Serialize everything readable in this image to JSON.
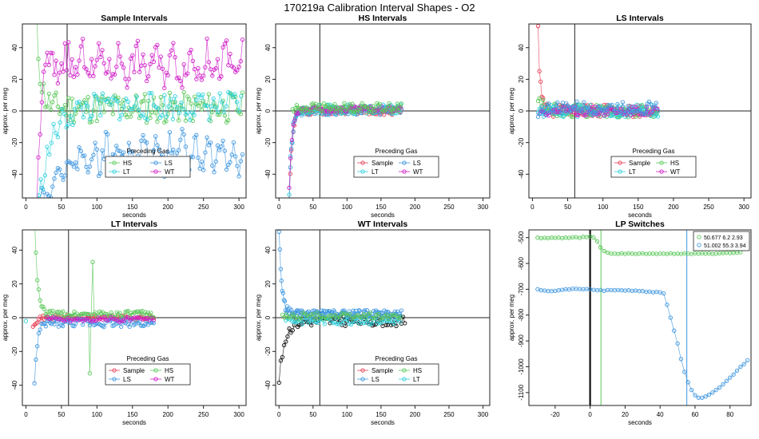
{
  "figure_title": "170219a   Calibration Interval Shapes - O2",
  "colors": {
    "Sample": "#e8435a",
    "HS": "#5ac85a",
    "LS": "#3f97e0",
    "LT": "#2fd1dc",
    "WT": "#d020c8",
    "black": "#111111",
    "axis": "#222222"
  },
  "chart_data": [
    {
      "id": "sample",
      "type": "scatter",
      "title": "Sample Intervals",
      "xlabel": "seconds",
      "ylabel": "approx. per meg",
      "xlim": [
        -5,
        310
      ],
      "ylim": [
        -55,
        55
      ],
      "xticks": [
        0,
        50,
        100,
        150,
        200,
        250,
        300
      ],
      "yticks": [
        -40,
        -20,
        0,
        20,
        40
      ],
      "vline": 58,
      "legend": {
        "title": "Preceding Gas",
        "placement": "bottom-center",
        "entries": [
          "HS",
          "LS",
          "LT",
          "WT"
        ]
      },
      "series": [
        {
          "name": "HS",
          "x_start": 15,
          "x_end": 305,
          "step": 2.5,
          "start": 55,
          "tau": 6,
          "level": 2,
          "noise": 10,
          "seed": 11
        },
        {
          "name": "LS",
          "x_start": 15,
          "x_end": 305,
          "step": 2.5,
          "start": -70,
          "tau": 25,
          "level": -27,
          "noise": 8,
          "wave": 8,
          "period": 18,
          "seed": 22
        },
        {
          "name": "LT",
          "x_start": 15,
          "x_end": 305,
          "step": 3,
          "start": -70,
          "tau": 18,
          "level": 3,
          "noise": 9,
          "seed": 33
        },
        {
          "name": "WT",
          "x_start": 15,
          "x_end": 305,
          "step": 2.5,
          "start": -60,
          "tau": 5,
          "level": 30,
          "noise": 10,
          "wave": 6,
          "period": 25,
          "seed": 44
        }
      ]
    },
    {
      "id": "hs",
      "type": "scatter",
      "title": "HS Intervals",
      "xlabel": "seconds",
      "ylabel": "approx. per meg",
      "xlim": [
        -5,
        310
      ],
      "ylim": [
        -55,
        55
      ],
      "xticks": [
        0,
        50,
        100,
        150,
        200,
        250,
        300
      ],
      "yticks": [
        -40,
        -20,
        0,
        20,
        40
      ],
      "vline": 60,
      "legend": {
        "title": "Preceding Gas",
        "placement": "bottom-center",
        "entries": [
          "Sample",
          "LS",
          "LT",
          "WT"
        ]
      },
      "series": [
        {
          "name": "Sample",
          "x_start": 15,
          "x_end": 180,
          "step": 1.5,
          "start": -55,
          "tau": 4,
          "level": 0,
          "noise": 2.5,
          "seed": 51
        },
        {
          "name": "LS",
          "x_start": 15,
          "x_end": 180,
          "step": 1.5,
          "start": -55,
          "tau": 4,
          "level": 0,
          "noise": 2.5,
          "seed": 52
        },
        {
          "name": "LT",
          "x_start": 15,
          "x_end": 180,
          "step": 2,
          "start": -50,
          "tau": 4,
          "level": 1,
          "noise": 3,
          "seed": 53
        },
        {
          "name": "WT",
          "x_start": 15,
          "x_end": 180,
          "step": 2,
          "start": -50,
          "tau": 4,
          "level": 1,
          "noise": 2,
          "seed": 54
        },
        {
          "name": "HS",
          "x_start": 20,
          "x_end": 180,
          "step": 2,
          "start": 0,
          "tau": 4,
          "level": 2,
          "noise": 3,
          "seed": 55
        }
      ]
    },
    {
      "id": "ls",
      "type": "scatter",
      "title": "LS Intervals",
      "xlabel": "seconds",
      "ylabel": "approx. per meg",
      "xlim": [
        -5,
        310
      ],
      "ylim": [
        -55,
        55
      ],
      "xticks": [
        0,
        50,
        100,
        150,
        200,
        250,
        300
      ],
      "yticks": [
        -40,
        -20,
        0,
        20,
        40
      ],
      "vline": 60,
      "legend": {
        "title": "Preceding Gas",
        "placement": "bottom-center",
        "entries": [
          "Sample",
          "HS",
          "LT",
          "WT"
        ]
      },
      "series": [
        {
          "name": "Sample",
          "x_start": 8,
          "x_end": 178,
          "step": 1.8,
          "start": 52,
          "tau": 3,
          "level": 0,
          "noise": 4,
          "seed": 61
        },
        {
          "name": "HS",
          "x_start": 8,
          "x_end": 178,
          "step": 1.8,
          "start": 6,
          "tau": 10,
          "level": 0,
          "noise": 4,
          "seed": 62
        },
        {
          "name": "LT",
          "x_start": 8,
          "x_end": 178,
          "step": 2,
          "start": 0,
          "tau": 10,
          "level": 0,
          "noise": 4,
          "seed": 63
        },
        {
          "name": "WT",
          "x_start": 10,
          "x_end": 178,
          "step": 2.2,
          "start": 0,
          "tau": 10,
          "level": 0,
          "noise": 3,
          "seed": 64
        },
        {
          "name": "LS",
          "x_start": 8,
          "x_end": 178,
          "step": 2.5,
          "start": 0,
          "tau": 10,
          "level": 2,
          "noise": 4,
          "seed": 65
        }
      ]
    },
    {
      "id": "lt",
      "type": "scatter",
      "title": "LT Intervals",
      "xlabel": "seconds",
      "ylabel": "approx. per meg",
      "xlim": [
        -5,
        310
      ],
      "ylim": [
        -52,
        52
      ],
      "xticks": [
        0,
        50,
        100,
        150,
        200,
        250,
        300
      ],
      "yticks": [
        -40,
        -20,
        0,
        20,
        40
      ],
      "vline": 60,
      "legend": {
        "title": "Preceding Gas",
        "placement": "bottom-center",
        "entries": [
          "Sample",
          "HS",
          "LS",
          "WT"
        ]
      },
      "series": [
        {
          "name": "Sample",
          "x_start": 10,
          "x_end": 180,
          "step": 2,
          "start": -4,
          "tau": 6,
          "level": 0,
          "noise": 1.5,
          "seed": 71
        },
        {
          "name": "HS",
          "x_start": 12,
          "x_end": 180,
          "step": 2,
          "start": 60,
          "tau": 4,
          "level": 2,
          "noise": 2,
          "seed": 72,
          "spikes": [
            [
              94,
              33
            ],
            [
              90,
              -33
            ]
          ]
        },
        {
          "name": "LS",
          "x_start": 12,
          "x_end": 180,
          "step": 2,
          "start": -40,
          "tau": 4,
          "level": -3,
          "noise": 2.5,
          "seed": 73
        },
        {
          "name": "WT",
          "x_start": 30,
          "x_end": 180,
          "step": 3,
          "start": 0,
          "tau": 5,
          "level": -1,
          "noise": 1.5,
          "seed": 74
        },
        {
          "name": "LT",
          "x_start": 0,
          "x_end": 0,
          "step": 5,
          "start": -2,
          "tau": 5,
          "level": -2,
          "noise": 0,
          "seed": 75
        }
      ]
    },
    {
      "id": "wt",
      "type": "scatter",
      "title": "WT Intervals",
      "xlabel": "seconds",
      "ylabel": "approx. per meg",
      "xlim": [
        -5,
        310
      ],
      "ylim": [
        -52,
        52
      ],
      "xticks": [
        0,
        50,
        100,
        150,
        200,
        250,
        300
      ],
      "yticks": [
        -40,
        -20,
        0,
        20,
        40
      ],
      "vline": 60,
      "legend": {
        "title": "Preceding Gas",
        "placement": "bottom-center",
        "entries": [
          "Sample",
          "HS",
          "LS",
          "LT"
        ]
      },
      "series": [
        {
          "name": "black",
          "x_start": 0,
          "x_end": 185,
          "step": 2.5,
          "start": -38,
          "tau": 8,
          "level": -2,
          "noise": 3,
          "seed": 81
        },
        {
          "name": "LS",
          "x_start": 0,
          "x_end": 180,
          "step": 1.2,
          "start": 52,
          "tau": 4,
          "level": 2,
          "noise": 2.5,
          "seed": 82
        },
        {
          "name": "LT",
          "x_start": 10,
          "x_end": 180,
          "step": 3,
          "start": 0,
          "tau": 5,
          "level": -2,
          "noise": 2,
          "seed": 83
        },
        {
          "name": "HS",
          "x_start": 5,
          "x_end": 180,
          "step": 3,
          "start": 0,
          "tau": 5,
          "level": 1,
          "noise": 2,
          "seed": 84
        }
      ]
    },
    {
      "id": "lp",
      "type": "scatter",
      "title": "LP Switches",
      "xlabel": "seconds",
      "ylabel": "approx. per meg",
      "xlim": [
        -35,
        92
      ],
      "ylim": [
        -1150,
        -470
      ],
      "xticks": [
        -20,
        0,
        20,
        40,
        60,
        80
      ],
      "yticks": [
        -500,
        -600,
        -700,
        -800,
        -900,
        -1000,
        -1100
      ],
      "vlines": [
        {
          "x": 0,
          "color": "black",
          "thick": true
        },
        {
          "x": 6.2,
          "color": "HS",
          "thick": false
        },
        {
          "x": 55.3,
          "color": "LS",
          "thick": false
        }
      ],
      "legend": {
        "placement": "top-right",
        "entries": [
          {
            "color": "HS",
            "text": "50.677 6.2 2.93"
          },
          {
            "color": "LS",
            "text": "51.002 55.3 3.94"
          }
        ]
      },
      "series": [
        {
          "name": "HS",
          "points": [
            [
              -30,
              -500
            ],
            [
              -28,
              -502
            ],
            [
              -26,
              -501
            ],
            [
              -24,
              -502
            ],
            [
              -22,
              -500
            ],
            [
              -20,
              -501
            ],
            [
              -18,
              -500
            ],
            [
              -16,
              -502
            ],
            [
              -14,
              -500
            ],
            [
              -12,
              -501
            ],
            [
              -10,
              -499
            ],
            [
              -8,
              -498
            ],
            [
              -6,
              -501
            ],
            [
              -4,
              -497
            ],
            [
              -2,
              -498
            ],
            [
              0,
              -495
            ],
            [
              2,
              -500
            ],
            [
              4,
              -514
            ],
            [
              6,
              -538
            ],
            [
              8,
              -552
            ],
            [
              10,
              -558
            ],
            [
              12,
              -562
            ],
            [
              14,
              -562
            ],
            [
              16,
              -563
            ],
            [
              18,
              -561
            ],
            [
              20,
              -563
            ],
            [
              22,
              -561
            ],
            [
              24,
              -562
            ],
            [
              26,
              -563
            ],
            [
              28,
              -562
            ],
            [
              30,
              -561
            ],
            [
              32,
              -563
            ],
            [
              34,
              -562
            ],
            [
              36,
              -562
            ],
            [
              38,
              -563
            ],
            [
              40,
              -562
            ],
            [
              42,
              -562
            ],
            [
              44,
              -563
            ],
            [
              46,
              -561
            ],
            [
              48,
              -563
            ],
            [
              50,
              -562
            ],
            [
              52,
              -563
            ],
            [
              54,
              -561
            ],
            [
              56,
              -562
            ],
            [
              58,
              -563
            ],
            [
              60,
              -561
            ],
            [
              62,
              -562
            ],
            [
              64,
              -561
            ],
            [
              66,
              -562
            ],
            [
              68,
              -561
            ],
            [
              70,
              -563
            ],
            [
              72,
              -562
            ],
            [
              74,
              -561
            ],
            [
              76,
              -560
            ],
            [
              78,
              -559
            ],
            [
              80,
              -560
            ],
            [
              82,
              -559
            ],
            [
              84,
              -558
            ],
            [
              86,
              -557
            ]
          ]
        },
        {
          "name": "LS",
          "points": [
            [
              -30,
              -700
            ],
            [
              -28,
              -704
            ],
            [
              -26,
              -705
            ],
            [
              -24,
              -707
            ],
            [
              -22,
              -707
            ],
            [
              -20,
              -706
            ],
            [
              -18,
              -704
            ],
            [
              -16,
              -702
            ],
            [
              -14,
              -700
            ],
            [
              -12,
              -701
            ],
            [
              -10,
              -698
            ],
            [
              -8,
              -698
            ],
            [
              -6,
              -699
            ],
            [
              -4,
              -700
            ],
            [
              -2,
              -699
            ],
            [
              0,
              -700
            ],
            [
              2,
              -702
            ],
            [
              4,
              -704
            ],
            [
              6,
              -703
            ],
            [
              8,
              -706
            ],
            [
              10,
              -703
            ],
            [
              12,
              -703
            ],
            [
              14,
              -704
            ],
            [
              16,
              -703
            ],
            [
              18,
              -704
            ],
            [
              20,
              -705
            ],
            [
              22,
              -704
            ],
            [
              24,
              -706
            ],
            [
              26,
              -705
            ],
            [
              28,
              -707
            ],
            [
              30,
              -707
            ],
            [
              32,
              -710
            ],
            [
              34,
              -709
            ],
            [
              36,
              -712
            ],
            [
              38,
              -710
            ],
            [
              40,
              -712
            ],
            [
              42,
              -716
            ],
            [
              44,
              -760
            ],
            [
              46,
              -810
            ],
            [
              48,
              -860
            ],
            [
              50,
              -910
            ],
            [
              52,
              -970
            ],
            [
              54,
              -1020
            ],
            [
              56,
              -1060
            ],
            [
              58,
              -1090
            ],
            [
              60,
              -1110
            ],
            [
              62,
              -1120
            ],
            [
              64,
              -1120
            ],
            [
              66,
              -1115
            ],
            [
              68,
              -1108
            ],
            [
              70,
              -1100
            ],
            [
              72,
              -1090
            ],
            [
              74,
              -1080
            ],
            [
              76,
              -1068
            ],
            [
              78,
              -1055
            ],
            [
              80,
              -1042
            ],
            [
              82,
              -1030
            ],
            [
              84,
              -1015
            ],
            [
              86,
              -1000
            ],
            [
              88,
              -990
            ],
            [
              90,
              -975
            ]
          ]
        }
      ]
    }
  ]
}
